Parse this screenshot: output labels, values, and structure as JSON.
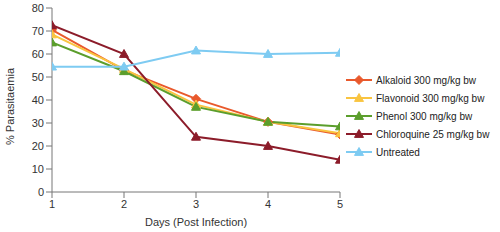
{
  "chart_data": {
    "type": "line",
    "x_label": "Days (Post Infection)",
    "y_label": "% Parasitaemia",
    "x": [
      1,
      2,
      3,
      4,
      5
    ],
    "xlim": [
      1,
      5
    ],
    "xticks": [
      1,
      2,
      3,
      4,
      5
    ],
    "ylim": [
      0,
      80
    ],
    "yticks": [
      0,
      10,
      20,
      30,
      40,
      50,
      60,
      70,
      80
    ],
    "grid": false,
    "legend": "right",
    "series": [
      {
        "name": "Alkaloid 300 mg/kg bw",
        "color": "#e9592c",
        "marker": "diamond",
        "values": [
          70.5,
          53,
          40.5,
          30.5,
          25
        ]
      },
      {
        "name": "Flavonoid 300 mg/kg bw",
        "color": "#f9c440",
        "marker": "triangle",
        "values": [
          68.5,
          53.5,
          38,
          30.5,
          25.5
        ]
      },
      {
        "name": "Phenol 300 mg/kg bw",
        "color": "#5b9e2c",
        "marker": "triangle",
        "values": [
          65,
          52.5,
          37,
          30.5,
          28.5
        ]
      },
      {
        "name": "Chloroquine 25 mg/kg bw",
        "color": "#8c1c2a",
        "marker": "triangle",
        "values": [
          72.5,
          60,
          24,
          20,
          14
        ]
      },
      {
        "name": "Untreated",
        "color": "#7ecbf2",
        "marker": "triangle",
        "values": [
          54.5,
          54.5,
          61.5,
          60,
          60.5
        ]
      }
    ]
  }
}
